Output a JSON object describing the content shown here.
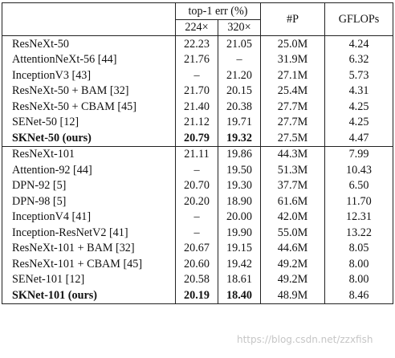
{
  "header": {
    "model": "",
    "err_group": "top-1 err (%)",
    "res_224": "224×",
    "res_320": "320×",
    "params": "#P",
    "gflops": "GFLOPs"
  },
  "groups": [
    {
      "rows": [
        {
          "model": "ResNeXt-50",
          "err224": "22.23",
          "err320": "21.05",
          "params": "25.0M",
          "gflops": "4.24",
          "bold": false
        },
        {
          "model": "AttentionNeXt-56 [44]",
          "err224": "21.76",
          "err320": "–",
          "params": "31.9M",
          "gflops": "6.32",
          "bold": false
        },
        {
          "model": "InceptionV3 [43]",
          "err224": "–",
          "err320": "21.20",
          "params": "27.1M",
          "gflops": "5.73",
          "bold": false
        },
        {
          "model": "ResNeXt-50 + BAM [32]",
          "err224": "21.70",
          "err320": "20.15",
          "params": "25.4M",
          "gflops": "4.31",
          "bold": false
        },
        {
          "model": "ResNeXt-50 + CBAM [45]",
          "err224": "21.40",
          "err320": "20.38",
          "params": "27.7M",
          "gflops": "4.25",
          "bold": false
        },
        {
          "model": "SENet-50 [12]",
          "err224": "21.12",
          "err320": "19.71",
          "params": "27.7M",
          "gflops": "4.25",
          "bold": false
        },
        {
          "model": "SKNet-50 (ours)",
          "err224": "20.79",
          "err320": "19.32",
          "params": "27.5M",
          "gflops": "4.47",
          "bold": true
        }
      ]
    },
    {
      "rows": [
        {
          "model": "ResNeXt-101",
          "err224": "21.11",
          "err320": "19.86",
          "params": "44.3M",
          "gflops": "7.99",
          "bold": false
        },
        {
          "model": "Attention-92 [44]",
          "err224": "–",
          "err320": "19.50",
          "params": "51.3M",
          "gflops": "10.43",
          "bold": false
        },
        {
          "model": "DPN-92 [5]",
          "err224": "20.70",
          "err320": "19.30",
          "params": "37.7M",
          "gflops": "6.50",
          "bold": false
        },
        {
          "model": "DPN-98 [5]",
          "err224": "20.20",
          "err320": "18.90",
          "params": "61.6M",
          "gflops": "11.70",
          "bold": false
        },
        {
          "model": "InceptionV4 [41]",
          "err224": "–",
          "err320": "20.00",
          "params": "42.0M",
          "gflops": "12.31",
          "bold": false
        },
        {
          "model": "Inception-ResNetV2 [41]",
          "err224": "–",
          "err320": "19.90",
          "params": "55.0M",
          "gflops": "13.22",
          "bold": false
        },
        {
          "model": "ResNeXt-101 + BAM [32]",
          "err224": "20.67",
          "err320": "19.15",
          "params": "44.6M",
          "gflops": "8.05",
          "bold": false
        },
        {
          "model": "ResNeXt-101 + CBAM [45]",
          "err224": "20.60",
          "err320": "19.42",
          "params": "49.2M",
          "gflops": "8.00",
          "bold": false
        },
        {
          "model": "SENet-101 [12]",
          "err224": "20.58",
          "err320": "18.61",
          "params": "49.2M",
          "gflops": "8.00",
          "bold": false
        },
        {
          "model": "SKNet-101 (ours)",
          "err224": "20.19",
          "err320": "18.40",
          "params": "48.9M",
          "gflops": "8.46",
          "bold": true
        }
      ]
    }
  ],
  "watermark": "https://blog.csdn.net/zzxfish"
}
